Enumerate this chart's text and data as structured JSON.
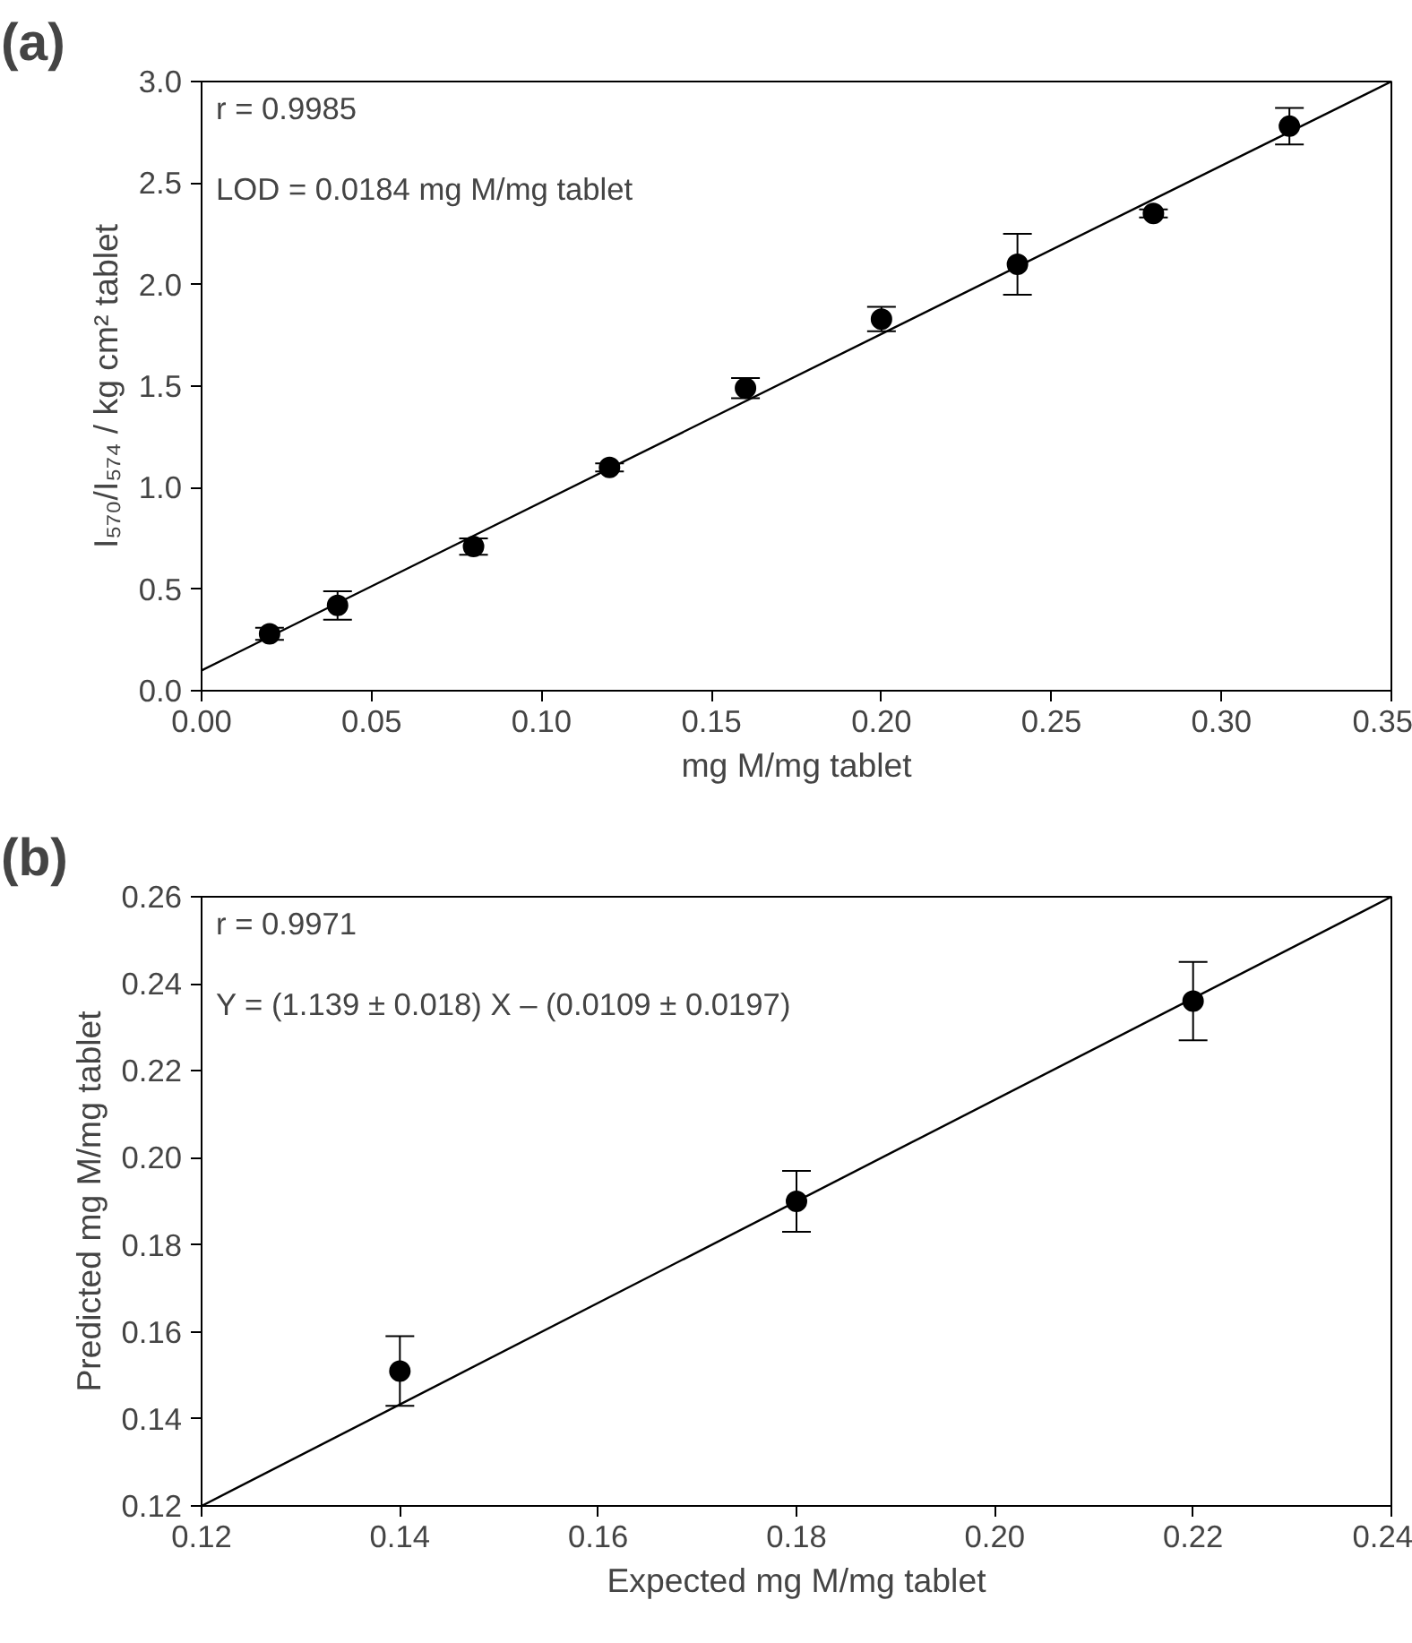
{
  "chart_data": [
    {
      "type": "scatter",
      "title": "(a)",
      "xlabel": "mg M/mg tablet",
      "ylabel": "I₅₇₀/I₅₇₄ / kg cm² tablet",
      "x": [
        0.02,
        0.04,
        0.08,
        0.12,
        0.16,
        0.2,
        0.24,
        0.28,
        0.32
      ],
      "series": [
        {
          "marker": "circle",
          "color": "#000000",
          "values": [
            0.28,
            0.42,
            0.71,
            1.1,
            1.49,
            1.83,
            2.1,
            2.35,
            2.78
          ],
          "errors": [
            0.03,
            0.07,
            0.04,
            0.02,
            0.05,
            0.06,
            0.15,
            0.02,
            0.09
          ]
        },
        {
          "type": "line",
          "color": "#000000",
          "x": [
            0,
            0.35
          ],
          "values": [
            0.1,
            3.0
          ]
        }
      ],
      "xlim": [
        0,
        0.35
      ],
      "xticks": [
        {
          "value": 0,
          "label": "0.00"
        },
        0.05,
        {
          "value": 0.1,
          "label": "0.10"
        },
        0.15,
        {
          "value": 0.2,
          "label": "0.20"
        },
        0.25,
        {
          "value": 0.3,
          "label": "0.30"
        },
        0.35
      ],
      "ylim": [
        0,
        3.0
      ],
      "yticks": [
        {
          "value": 0,
          "label": "0.0"
        },
        0.5,
        {
          "value": 1,
          "label": "1.0"
        },
        1.5,
        {
          "value": 2,
          "label": "2.0"
        },
        2.5,
        {
          "value": 3,
          "label": "3.0"
        }
      ],
      "annotations": [
        "r = 0.9985",
        "LOD = 0.0184 mg M/mg tablet"
      ],
      "grid": false
    },
    {
      "type": "scatter",
      "title": "(b)",
      "xlabel": "Expected mg M/mg tablet",
      "ylabel": "Predicted mg M/mg tablet",
      "x": [
        0.14,
        0.18,
        0.22
      ],
      "series": [
        {
          "marker": "circle",
          "color": "#000000",
          "values": [
            0.151,
            0.19,
            0.236
          ],
          "errors": [
            0.008,
            0.007,
            0.009
          ]
        },
        {
          "type": "line",
          "color": "#000000",
          "x": [
            0.12,
            0.24
          ],
          "values": [
            0.12,
            0.26
          ]
        }
      ],
      "xlim": [
        0.12,
        0.24
      ],
      "xticks": [
        0.12,
        0.14,
        0.16,
        0.18,
        {
          "value": 0.2,
          "label": "0.20"
        },
        0.22,
        0.24
      ],
      "ylim": [
        0.12,
        0.26
      ],
      "yticks": [
        0.12,
        0.14,
        0.16,
        0.18,
        {
          "value": 0.2,
          "label": "0.20"
        },
        0.22,
        0.24,
        0.26
      ],
      "annotations": [
        "r = 0.9971",
        "Y = (1.139 ± 0.018) X – (0.0109 ± 0.0197)"
      ],
      "grid": false
    }
  ]
}
